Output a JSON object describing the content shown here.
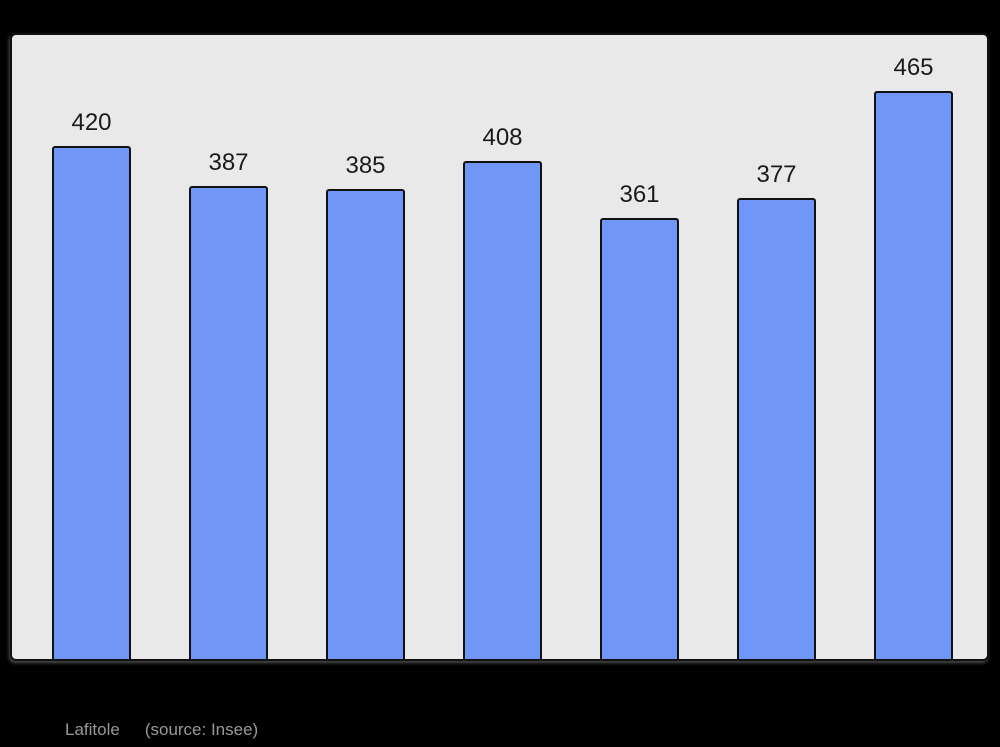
{
  "page": {
    "background": "#000000"
  },
  "chart_data": {
    "type": "bar",
    "categories": [],
    "values": [
      420,
      387,
      385,
      408,
      361,
      377,
      465
    ],
    "data_labels_shown": true,
    "title": "",
    "xlabel": "",
    "ylabel": "",
    "ylim": [
      0,
      510
    ],
    "grid": false,
    "legend": "none",
    "caption_place": "Lafitole",
    "caption_source": "(source: Insee)",
    "colors": {
      "bar_fill": "#7096f8",
      "stroke": "#111111",
      "plot_background": "#e9e9e9",
      "data_label": "#1a1a1a",
      "caption": "#999999"
    }
  }
}
